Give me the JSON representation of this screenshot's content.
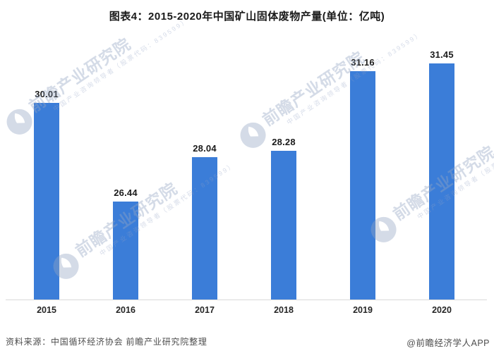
{
  "page": {
    "title": "图表4：2015-2020年中国矿山固体废物产量(单位：亿吨)",
    "footer": {
      "source": "资料来源：中国循环经济协会 前瞻产业研究院整理",
      "credit": "@前瞻经济学人APP"
    }
  },
  "watermark": {
    "brand_text": "前瞻产业研究院",
    "sub_text": "中国产业咨询领导者（股票代码：839599）",
    "logo": "qianzhan-circle-logo",
    "color": "#94A4C4"
  },
  "chart_data": {
    "type": "bar",
    "title": "图表4：2015-2020年中国矿山固体废物产量(单位：亿吨)",
    "unit_label": "亿吨",
    "categories": [
      "2015",
      "2016",
      "2017",
      "2018",
      "2019",
      "2020"
    ],
    "values": [
      30.01,
      26.44,
      28.04,
      28.28,
      31.16,
      31.45
    ],
    "value_label_format": "2-decimals",
    "bar_color": "#3B7DD8",
    "value_label_color": "#1A1A1A",
    "axis_line_color": "#D9D9D9",
    "ylim": [
      22.9,
      32.0
    ],
    "grid": false,
    "legend": false,
    "value_labels_shown": true
  }
}
